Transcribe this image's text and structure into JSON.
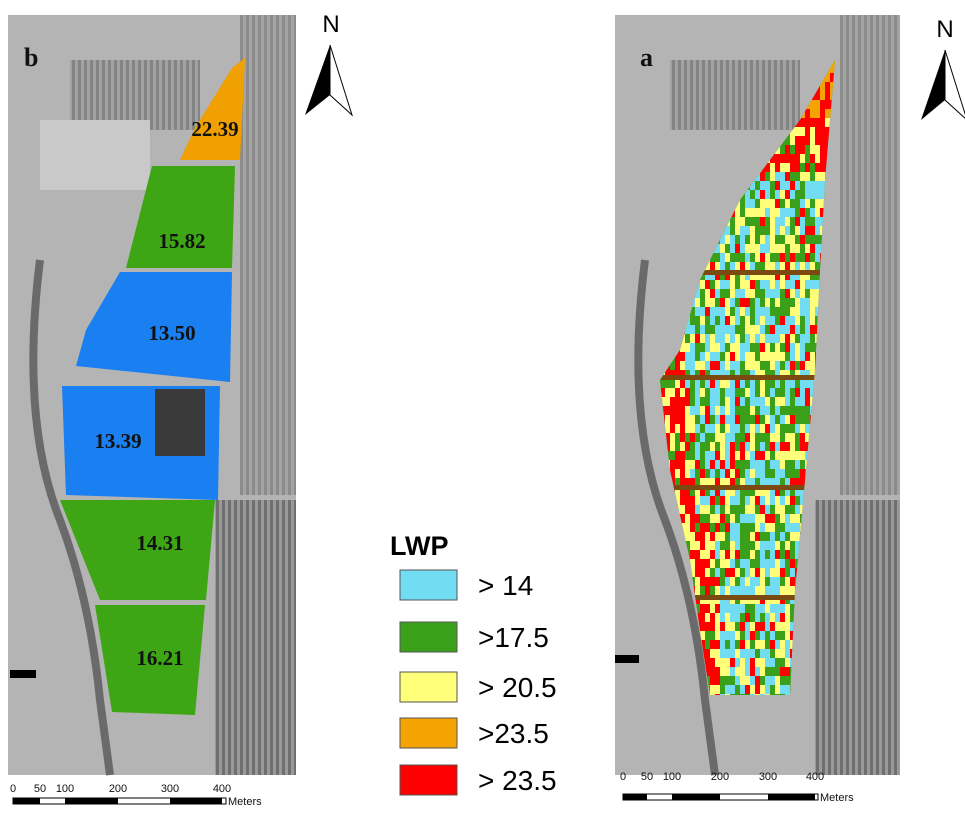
{
  "panel_b": {
    "label": "b",
    "north": "N",
    "fields": [
      {
        "text": "22.39",
        "color": "#f0a000"
      },
      {
        "text": "15.82",
        "color": "#3ea614"
      },
      {
        "text": "13.50",
        "color": "#1a7ff0"
      },
      {
        "text": "13.39",
        "color": "#1a7ff0"
      },
      {
        "text": "14.31",
        "color": "#3ea614"
      },
      {
        "text": "16.21",
        "color": "#3ea614"
      }
    ],
    "scale": {
      "ticks": [
        "0",
        "50",
        "100",
        "200",
        "300",
        "400"
      ],
      "unit": "Meters"
    }
  },
  "panel_a": {
    "label": "a",
    "north": "N",
    "scale": {
      "ticks": [
        "0",
        "50",
        "100",
        "200",
        "300",
        "400"
      ],
      "unit": "Meters"
    }
  },
  "legend": {
    "title": "LWP",
    "items": [
      {
        "label": "> 14",
        "color": "#72dcf3"
      },
      {
        "label": ">17.5",
        "color": "#3aa01a"
      },
      {
        "label": "> 20.5",
        "color": "#ffff7a"
      },
      {
        "label": ">23.5",
        "color": "#f5a300"
      },
      {
        "label": "> 23.5",
        "color": "#ff0000"
      }
    ]
  }
}
